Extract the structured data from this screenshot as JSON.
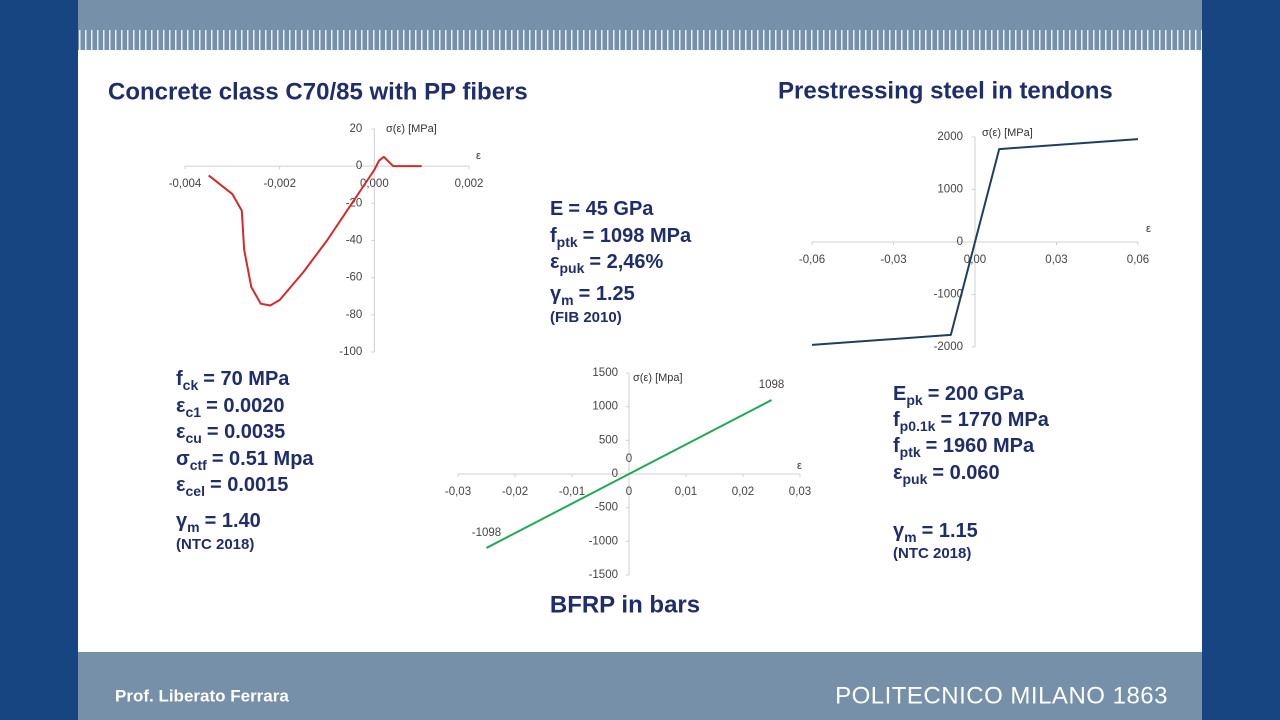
{
  "chart_data": [
    {
      "type": "line",
      "title": "Concrete class C70/85 with PP fibers",
      "y_label": "σ(ε) [MPa]",
      "x_label": "ε",
      "x": [
        -0.0035,
        -0.003,
        -0.0028,
        -0.00275,
        -0.0026,
        -0.0024,
        -0.0022,
        -0.002,
        -0.0015,
        -0.001,
        -0.0005,
        0,
        0.0001,
        0.0002,
        0.0004,
        0.001
      ],
      "values": [
        -5,
        -15,
        -24,
        -45,
        -65,
        -74,
        -75,
        -72,
        -57,
        -40,
        -21,
        -2,
        3,
        5,
        0,
        0
      ],
      "color": "#d42a2a",
      "xlim": [
        -0.004,
        0.002
      ],
      "ylim": [
        -100,
        20
      ],
      "xticks": [
        {
          "value": -0.004,
          "label": "-0,004"
        },
        {
          "value": -0.002,
          "label": "-0,002"
        },
        {
          "value": 0,
          "label": "0,000"
        },
        {
          "value": 0.002,
          "label": "0,002"
        }
      ],
      "yticks": [
        20,
        0,
        -20,
        -40,
        -60,
        -80,
        -100
      ],
      "grid": false
    },
    {
      "type": "line",
      "title": "Prestressing steel in tendons",
      "y_label": "σ(ε) [MPa]",
      "x_label": "ε",
      "x": [
        -0.06,
        -0.0089,
        0.0089,
        0.06
      ],
      "values": [
        -1960,
        -1770,
        1770,
        1960
      ],
      "color": "#1f3f5f",
      "xlim": [
        -0.06,
        0.06
      ],
      "ylim": [
        -2000,
        2000
      ],
      "xticks": [
        {
          "value": -0.06,
          "label": "-0,06"
        },
        {
          "value": -0.03,
          "label": "-0,03"
        },
        {
          "value": 0,
          "label": "0,00"
        },
        {
          "value": 0.03,
          "label": "0,03"
        },
        {
          "value": 0.06,
          "label": "0,06"
        }
      ],
      "yticks": [
        2000,
        1000,
        0,
        -1000,
        -2000
      ],
      "grid": false
    },
    {
      "type": "line",
      "title": "BFRP in bars",
      "y_label": "σ(ε) [Mpa]",
      "x_label": "ε",
      "x": [
        -0.025,
        0,
        0.025
      ],
      "values": [
        -1098,
        0,
        1098
      ],
      "data_labels": true,
      "color": "#22a957",
      "xlim": [
        -0.03,
        0.03
      ],
      "ylim": [
        -1500,
        1500
      ],
      "xticks": [
        {
          "value": -0.03,
          "label": "-0,03"
        },
        {
          "value": -0.02,
          "label": "-0,02"
        },
        {
          "value": -0.01,
          "label": "-0,01"
        },
        0,
        {
          "value": 0.01,
          "label": "0,01"
        },
        {
          "value": 0.02,
          "label": "0,02"
        },
        {
          "value": 0.03,
          "label": "0,03"
        }
      ],
      "yticks": [
        1500,
        1000,
        500,
        0,
        -500,
        -1000,
        -1500
      ],
      "grid": false
    }
  ],
  "slide": {
    "concrete_params": [
      {
        "symbol": "f",
        "sub": "ck",
        "text": "= 70 MPa"
      },
      {
        "symbol": "ε",
        "sub": "c1",
        "text": "= 0.0020"
      },
      {
        "symbol": "ε",
        "sub": "cu",
        "text": "= 0.0035"
      },
      {
        "symbol": "σ",
        "sub": "ctf",
        "text": "= 0.51 Mpa"
      },
      {
        "symbol": "ε",
        "sub": "cel",
        "text": "= 0.0015"
      },
      {
        "symbol": "γ",
        "sub": "m",
        "text": "= 1.40"
      }
    ],
    "concrete_ref": "(NTC 2018)",
    "bfrp_params": [
      {
        "symbol": "E",
        "text": "= 45 GPa"
      },
      {
        "symbol": "f",
        "sub": "ptk",
        "text": "= 1098 MPa"
      },
      {
        "symbol": "ε",
        "sub": "puk",
        "text": "= 2,46%"
      },
      {
        "symbol": "γ",
        "sub": "m",
        "text": "= 1.25"
      }
    ],
    "bfrp_ref": "(FIB 2010)",
    "steel_params": [
      {
        "symbol": "E",
        "sub": "pk",
        "text": "= 200 GPa"
      },
      {
        "symbol": "f",
        "sub": "p0.1k",
        "text": "= 1770 MPa"
      },
      {
        "symbol": "f",
        "sub": "ptk",
        "text": "= 1960 MPa"
      },
      {
        "symbol": "ε",
        "sub": "puk",
        "text": "= 0.060"
      },
      {
        "symbol": "γ",
        "sub": "m",
        "text": "= 1.15"
      }
    ],
    "steel_ref": "(NTC 2018)",
    "footer_author": "Prof. Liberato Ferrara",
    "footer_logo": "POLITECNICO MILANO 1863"
  }
}
